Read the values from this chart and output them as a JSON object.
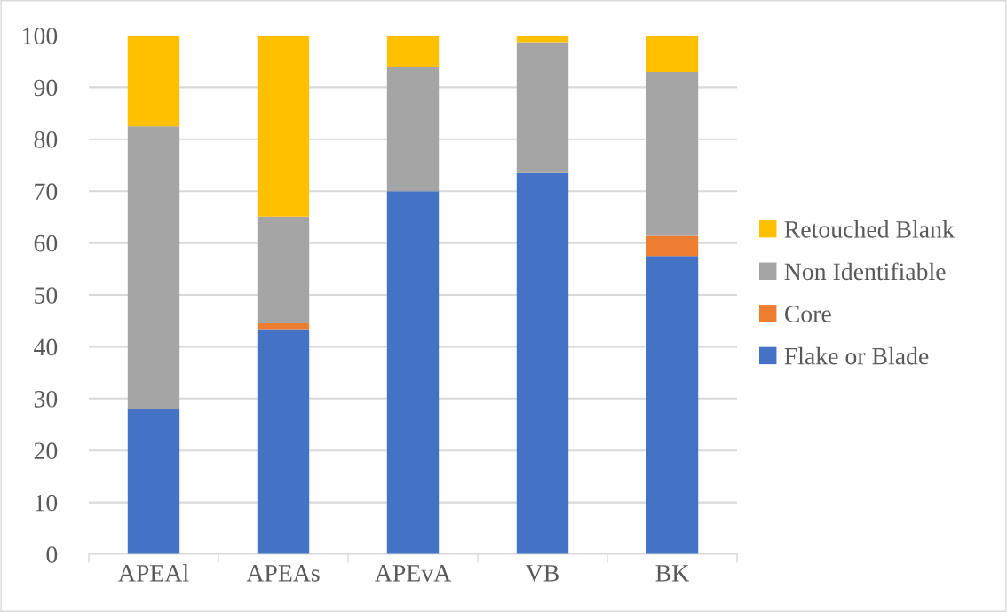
{
  "chart_data": {
    "type": "bar",
    "stacked": true,
    "categories": [
      "APEAl",
      "APEAs",
      "APEvA",
      "VB",
      "BK"
    ],
    "series": [
      {
        "name": "Flake or Blade",
        "color": "#4472c4",
        "values": [
          28,
          43.4,
          70,
          73.5,
          57.5
        ]
      },
      {
        "name": "Core",
        "color": "#ed7d31",
        "values": [
          0,
          1.1,
          0,
          0,
          3.9
        ]
      },
      {
        "name": "Non Identifiable",
        "color": "#a5a5a5",
        "values": [
          54.5,
          20.6,
          24,
          25.2,
          31.6
        ]
      },
      {
        "name": "Retouched Blank",
        "color": "#ffc000",
        "values": [
          17.5,
          34.9,
          6,
          1.3,
          7
        ]
      }
    ],
    "ylim": [
      0,
      100
    ],
    "yticks": [
      0,
      10,
      20,
      30,
      40,
      50,
      60,
      70,
      80,
      90,
      100
    ],
    "grid": "y",
    "legend": "right"
  }
}
